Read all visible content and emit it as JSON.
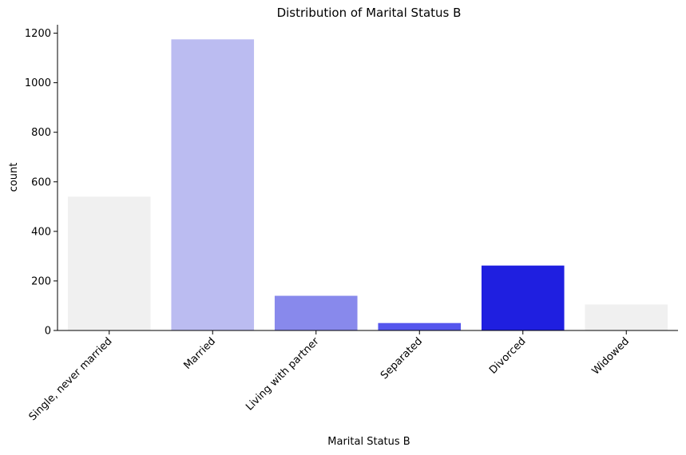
{
  "chart_data": {
    "type": "bar",
    "title": "Distribution of Marital Status B",
    "xlabel": "Marital Status B",
    "ylabel": "count",
    "categories": [
      "Single, never married",
      "Married",
      "Living with partner",
      "Separated",
      "Divorced",
      "Widowed"
    ],
    "values": [
      540,
      1175,
      140,
      30,
      262,
      105
    ],
    "colors": [
      "#f0f0f0",
      "#bbbcf1",
      "#8889ec",
      "#5556ed",
      "#1f1fe0",
      "#f0f0f0"
    ],
    "ylim": [
      0,
      1234
    ],
    "yticks": [
      0,
      200,
      400,
      600,
      800,
      1000,
      1200
    ],
    "grid": false,
    "legend": "none"
  }
}
